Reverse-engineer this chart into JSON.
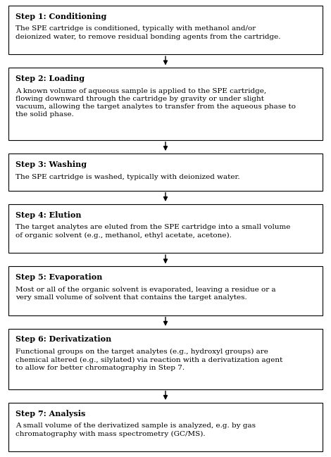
{
  "background_color": "#ffffff",
  "box_face_color": "#ffffff",
  "box_edge_color": "#000000",
  "arrow_color": "#000000",
  "steps": [
    {
      "title": "Step 1: Conditioning",
      "body": "The SPE cartridge is conditioned, typically with methanol and/or\ndeionized water, to remove residual bonding agents from the cartridge."
    },
    {
      "title": "Step 2: Loading",
      "body": "A known volume of aqueous sample is applied to the SPE cartridge,\nflowing downward through the cartridge by gravity or under slight\nvacuum, allowing the target analytes to transfer from the aqueous phase to\nthe solid phase."
    },
    {
      "title": "Step 3: Washing",
      "body": "The SPE cartridge is washed, typically with deionized water."
    },
    {
      "title": "Step 4: Elution",
      "body": "The target analytes are eluted from the SPE cartridge into a small volume\nof organic solvent (e.g., methanol, ethyl acetate, acetone)."
    },
    {
      "title": "Step 5: Evaporation",
      "body": "Most or all of the organic solvent is evaporated, leaving a residue or a\nvery small volume of solvent that contains the target analytes."
    },
    {
      "title": "Step 6: Derivatization",
      "body": "Functional groups on the target analytes (e.g., hydroxyl groups) are\nchemical altered (e.g., silylated) via reaction with a derivatization agent\nto allow for better chromatography in Step 7."
    },
    {
      "title": "Step 7: Analysis",
      "body": "A small volume of the derivatized sample is analyzed, e.g. by gas\nchromatography with mass spectrometry (GC/MS)."
    }
  ],
  "title_fontsize": 8.0,
  "body_fontsize": 7.5,
  "fig_width": 4.7,
  "fig_height": 6.49,
  "dpi": 100
}
